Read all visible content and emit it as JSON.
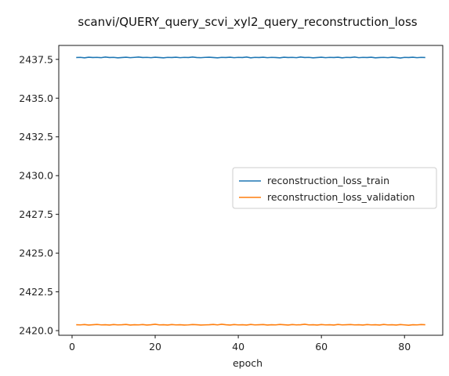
{
  "chart_data": {
    "type": "line",
    "title": "scanvi/QUERY_query_scvi_xyl2_query_reconstruction_loss",
    "xlabel": "epoch",
    "ylabel": "",
    "xlim": [
      -3.2,
      89.2
    ],
    "ylim": [
      2419.7,
      2438.4
    ],
    "xticks": [
      0,
      20,
      40,
      60,
      80
    ],
    "yticks": [
      2420.0,
      2422.5,
      2425.0,
      2427.5,
      2430.0,
      2432.5,
      2435.0,
      2437.5
    ],
    "ytick_labels": [
      "2420.0",
      "2422.5",
      "2425.0",
      "2427.5",
      "2430.0",
      "2432.5",
      "2435.0",
      "2437.5"
    ],
    "grid": false,
    "legend_position": "center-right",
    "series": [
      {
        "name": "reconstruction_loss_train",
        "color": "#1f77b4",
        "x": [
          1,
          2,
          3,
          4,
          5,
          6,
          7,
          8,
          9,
          10,
          11,
          12,
          13,
          14,
          15,
          16,
          17,
          18,
          19,
          20,
          21,
          22,
          23,
          24,
          25,
          26,
          27,
          28,
          29,
          30,
          31,
          32,
          33,
          34,
          35,
          36,
          37,
          38,
          39,
          40,
          41,
          42,
          43,
          44,
          45,
          46,
          47,
          48,
          49,
          50,
          51,
          52,
          53,
          54,
          55,
          56,
          57,
          58,
          59,
          60,
          61,
          62,
          63,
          64,
          65,
          66,
          67,
          68,
          69,
          70,
          71,
          72,
          73,
          74,
          75,
          76,
          77,
          78,
          79,
          80,
          81,
          82,
          83,
          84,
          85
        ],
        "y": [
          2437.62,
          2437.63,
          2437.6,
          2437.64,
          2437.62,
          2437.63,
          2437.61,
          2437.65,
          2437.62,
          2437.63,
          2437.6,
          2437.62,
          2437.64,
          2437.61,
          2437.63,
          2437.65,
          2437.62,
          2437.63,
          2437.61,
          2437.64,
          2437.62,
          2437.6,
          2437.63,
          2437.62,
          2437.64,
          2437.61,
          2437.63,
          2437.62,
          2437.65,
          2437.62,
          2437.61,
          2437.63,
          2437.64,
          2437.62,
          2437.6,
          2437.63,
          2437.62,
          2437.64,
          2437.61,
          2437.63,
          2437.62,
          2437.65,
          2437.6,
          2437.63,
          2437.62,
          2437.64,
          2437.61,
          2437.63,
          2437.62,
          2437.6,
          2437.64,
          2437.62,
          2437.63,
          2437.61,
          2437.65,
          2437.62,
          2437.63,
          2437.6,
          2437.62,
          2437.64,
          2437.61,
          2437.63,
          2437.62,
          2437.64,
          2437.6,
          2437.63,
          2437.62,
          2437.65,
          2437.61,
          2437.63,
          2437.62,
          2437.64,
          2437.6,
          2437.62,
          2437.63,
          2437.61,
          2437.64,
          2437.62,
          2437.59,
          2437.63,
          2437.62,
          2437.64,
          2437.61,
          2437.63,
          2437.62
        ]
      },
      {
        "name": "reconstruction_loss_validation",
        "color": "#ff7f0e",
        "x": [
          1,
          2,
          3,
          4,
          5,
          6,
          7,
          8,
          9,
          10,
          11,
          12,
          13,
          14,
          15,
          16,
          17,
          18,
          19,
          20,
          21,
          22,
          23,
          24,
          25,
          26,
          27,
          28,
          29,
          30,
          31,
          32,
          33,
          34,
          35,
          36,
          37,
          38,
          39,
          40,
          41,
          42,
          43,
          44,
          45,
          46,
          47,
          48,
          49,
          50,
          51,
          52,
          53,
          54,
          55,
          56,
          57,
          58,
          59,
          60,
          61,
          62,
          63,
          64,
          65,
          66,
          67,
          68,
          69,
          70,
          71,
          72,
          73,
          74,
          75,
          76,
          77,
          78,
          79,
          80,
          81,
          82,
          83,
          84,
          85
        ],
        "y": [
          2420.38,
          2420.37,
          2420.39,
          2420.36,
          2420.38,
          2420.4,
          2420.37,
          2420.38,
          2420.36,
          2420.39,
          2420.37,
          2420.38,
          2420.4,
          2420.36,
          2420.38,
          2420.37,
          2420.39,
          2420.36,
          2420.38,
          2420.41,
          2420.37,
          2420.38,
          2420.36,
          2420.39,
          2420.37,
          2420.38,
          2420.36,
          2420.37,
          2420.39,
          2420.38,
          2420.36,
          2420.37,
          2420.38,
          2420.4,
          2420.37,
          2420.41,
          2420.38,
          2420.36,
          2420.39,
          2420.37,
          2420.38,
          2420.36,
          2420.4,
          2420.37,
          2420.38,
          2420.39,
          2420.36,
          2420.38,
          2420.37,
          2420.4,
          2420.38,
          2420.36,
          2420.39,
          2420.37,
          2420.38,
          2420.41,
          2420.37,
          2420.38,
          2420.36,
          2420.39,
          2420.37,
          2420.38,
          2420.36,
          2420.4,
          2420.37,
          2420.38,
          2420.39,
          2420.37,
          2420.38,
          2420.36,
          2420.39,
          2420.37,
          2420.38,
          2420.36,
          2420.4,
          2420.37,
          2420.38,
          2420.36,
          2420.39,
          2420.37,
          2420.35,
          2420.38,
          2420.37,
          2420.39,
          2420.38
        ]
      }
    ]
  }
}
